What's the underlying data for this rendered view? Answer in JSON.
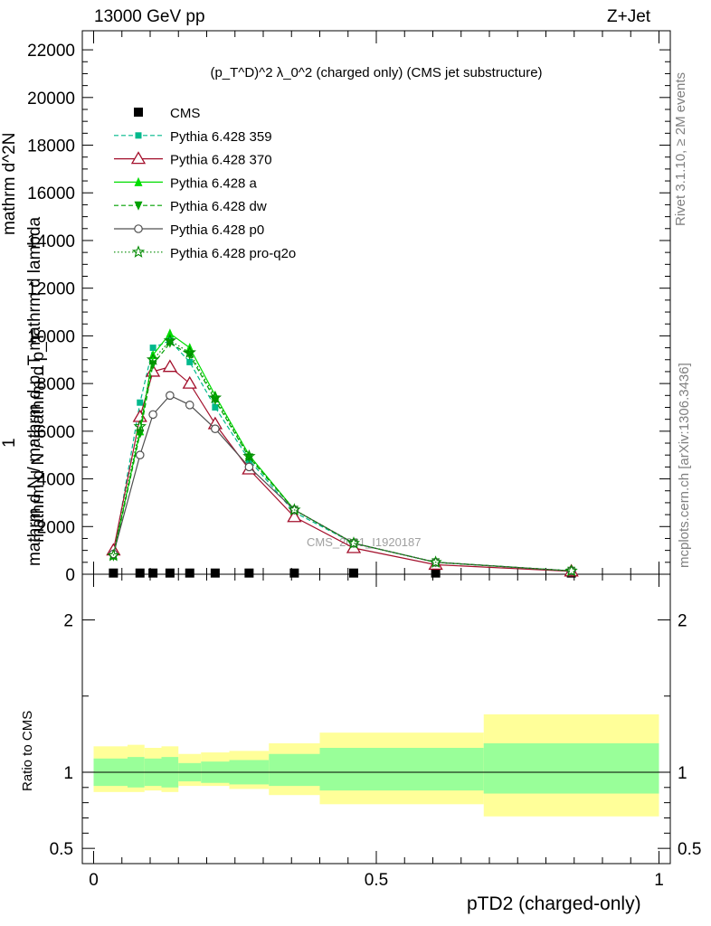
{
  "header": {
    "left": "13000 GeV pp",
    "right": "Z+Jet"
  },
  "side": {
    "rivet": "Rivet 3.1.10, ≥ 2M events",
    "mcplots": "mcplots.cern.ch [arXiv:1306.3436]"
  },
  "plot_title": "(p_T^D)^2 λ_0^2 (charged only) (CMS jet substructure)",
  "ylabel_upper": "mathrm d N / mathrm d p_T mathrm d lambda",
  "ylabel_upper_num": "mathrm d^2N",
  "ylabel_upper_one": "1",
  "ylabel_upper_den": "mathrm d N / mathrm d p_T",
  "ylabel_ratio": "Ratio to CMS",
  "xlabel": "pTD2 (charged-only)",
  "watermark": "CMS_2021_I1920187",
  "colors": {
    "cms": "#000000",
    "p359": "#00b98c",
    "p370": "#a30f2b",
    "pa": "#00dd00",
    "pdw": "#00a000",
    "pp0": "#505050",
    "pq2o": "#008a00",
    "band_inner": "#99ff99",
    "band_outer": "#ffff99"
  },
  "chart_data": [
    {
      "type": "line",
      "panel": "main",
      "title": "(p_T^D)^2 λ_0^2 (charged only) (CMS jet substructure)",
      "xlabel": "pTD2 (charged-only)",
      "ylabel": "mathrm d^2N / mathrm d p_T mathrm d lambda",
      "xlim": [
        -0.02,
        1.02
      ],
      "ylim": [
        0,
        22800
      ],
      "yticks": [
        0,
        2000,
        4000,
        6000,
        8000,
        10000,
        12000,
        14000,
        16000,
        18000,
        20000,
        22000
      ],
      "ytick_labels": [
        "0",
        "2000",
        "4000",
        "6000",
        "8000",
        "10000",
        "12000",
        "14000",
        "16000",
        "18000",
        "20000",
        "22000"
      ],
      "legend_position": "top-left",
      "series": [
        {
          "name": "CMS",
          "key": "cms",
          "marker": "square",
          "line": "none",
          "x": [
            0.035,
            0.082,
            0.105,
            0.135,
            0.17,
            0.215,
            0.275,
            0.355,
            0.46,
            0.605,
            0.845
          ],
          "y": [
            50,
            50,
            50,
            50,
            50,
            50,
            50,
            50,
            50,
            50,
            50
          ]
        },
        {
          "name": "Pythia 6.428 359",
          "key": "p359",
          "marker": "square-small",
          "line": "dashed",
          "x": [
            0.035,
            0.082,
            0.105,
            0.135,
            0.17,
            0.215,
            0.275,
            0.355,
            0.46,
            0.605,
            0.845
          ],
          "y": [
            800,
            7200,
            9500,
            9800,
            8900,
            7000,
            4800,
            2600,
            1300,
            500,
            140
          ]
        },
        {
          "name": "Pythia 6.428 370",
          "key": "p370",
          "marker": "triangle-open",
          "line": "solid",
          "x": [
            0.035,
            0.082,
            0.105,
            0.135,
            0.17,
            0.215,
            0.275,
            0.355,
            0.46,
            0.605,
            0.845
          ],
          "y": [
            1000,
            6600,
            8500,
            8700,
            8000,
            6300,
            4400,
            2400,
            1100,
            400,
            120
          ]
        },
        {
          "name": "Pythia 6.428 a",
          "key": "pa",
          "marker": "triangle",
          "line": "solid",
          "x": [
            0.035,
            0.082,
            0.105,
            0.135,
            0.17,
            0.215,
            0.275,
            0.355,
            0.46,
            0.605,
            0.845
          ],
          "y": [
            800,
            6000,
            9200,
            10100,
            9500,
            7500,
            5000,
            2700,
            1300,
            500,
            140
          ]
        },
        {
          "name": "Pythia 6.428 dw",
          "key": "pdw",
          "marker": "triangle-down",
          "line": "dashed",
          "x": [
            0.035,
            0.082,
            0.105,
            0.135,
            0.17,
            0.215,
            0.275,
            0.355,
            0.46,
            0.605,
            0.845
          ],
          "y": [
            750,
            5900,
            8800,
            9700,
            9200,
            7300,
            4900,
            2700,
            1300,
            500,
            140
          ]
        },
        {
          "name": "Pythia 6.428 p0",
          "key": "pp0",
          "marker": "circle-open",
          "line": "solid",
          "x": [
            0.035,
            0.082,
            0.105,
            0.135,
            0.17,
            0.215,
            0.275,
            0.355,
            0.46,
            0.605,
            0.845
          ],
          "y": [
            850,
            5000,
            6700,
            7500,
            7100,
            6100,
            4500,
            2700,
            1300,
            500,
            140
          ]
        },
        {
          "name": "Pythia 6.428 pro-q2o",
          "key": "pq2o",
          "marker": "star",
          "line": "dotted",
          "x": [
            0.035,
            0.082,
            0.105,
            0.135,
            0.17,
            0.215,
            0.275,
            0.355,
            0.46,
            0.605,
            0.845
          ],
          "y": [
            780,
            6200,
            9000,
            9800,
            9300,
            7400,
            4950,
            2700,
            1300,
            500,
            140
          ]
        }
      ]
    },
    {
      "type": "area",
      "panel": "ratio",
      "ylabel": "Ratio to CMS",
      "xlabel": "pTD2 (charged-only)",
      "xlim": [
        -0.02,
        1.02
      ],
      "ylim": [
        0.4,
        2.3
      ],
      "yticks": [
        0.5,
        1,
        2
      ],
      "ytick_labels": [
        "0.5",
        "1",
        "2"
      ],
      "xticks": [
        0,
        0.5,
        1
      ],
      "xtick_labels": [
        "0",
        "0.5",
        "1"
      ],
      "bins": [
        {
          "lo": 0.0,
          "hi": 0.06,
          "inner": [
            0.91,
            1.09
          ],
          "outer": [
            0.87,
            1.17
          ]
        },
        {
          "lo": 0.06,
          "hi": 0.09,
          "inner": [
            0.9,
            1.1
          ],
          "outer": [
            0.87,
            1.18
          ]
        },
        {
          "lo": 0.09,
          "hi": 0.12,
          "inner": [
            0.91,
            1.09
          ],
          "outer": [
            0.88,
            1.16
          ]
        },
        {
          "lo": 0.12,
          "hi": 0.15,
          "inner": [
            0.9,
            1.1
          ],
          "outer": [
            0.87,
            1.17
          ]
        },
        {
          "lo": 0.15,
          "hi": 0.19,
          "inner": [
            0.94,
            1.06
          ],
          "outer": [
            0.91,
            1.12
          ]
        },
        {
          "lo": 0.19,
          "hi": 0.24,
          "inner": [
            0.93,
            1.07
          ],
          "outer": [
            0.91,
            1.13
          ]
        },
        {
          "lo": 0.24,
          "hi": 0.31,
          "inner": [
            0.92,
            1.08
          ],
          "outer": [
            0.89,
            1.14
          ]
        },
        {
          "lo": 0.31,
          "hi": 0.4,
          "inner": [
            0.91,
            1.12
          ],
          "outer": [
            0.85,
            1.19
          ]
        },
        {
          "lo": 0.4,
          "hi": 0.69,
          "inner": [
            0.88,
            1.16
          ],
          "outer": [
            0.79,
            1.26
          ]
        },
        {
          "lo": 0.69,
          "hi": 1.0,
          "inner": [
            0.86,
            1.19
          ],
          "outer": [
            0.71,
            1.38
          ]
        }
      ],
      "reference_line": 1
    }
  ]
}
